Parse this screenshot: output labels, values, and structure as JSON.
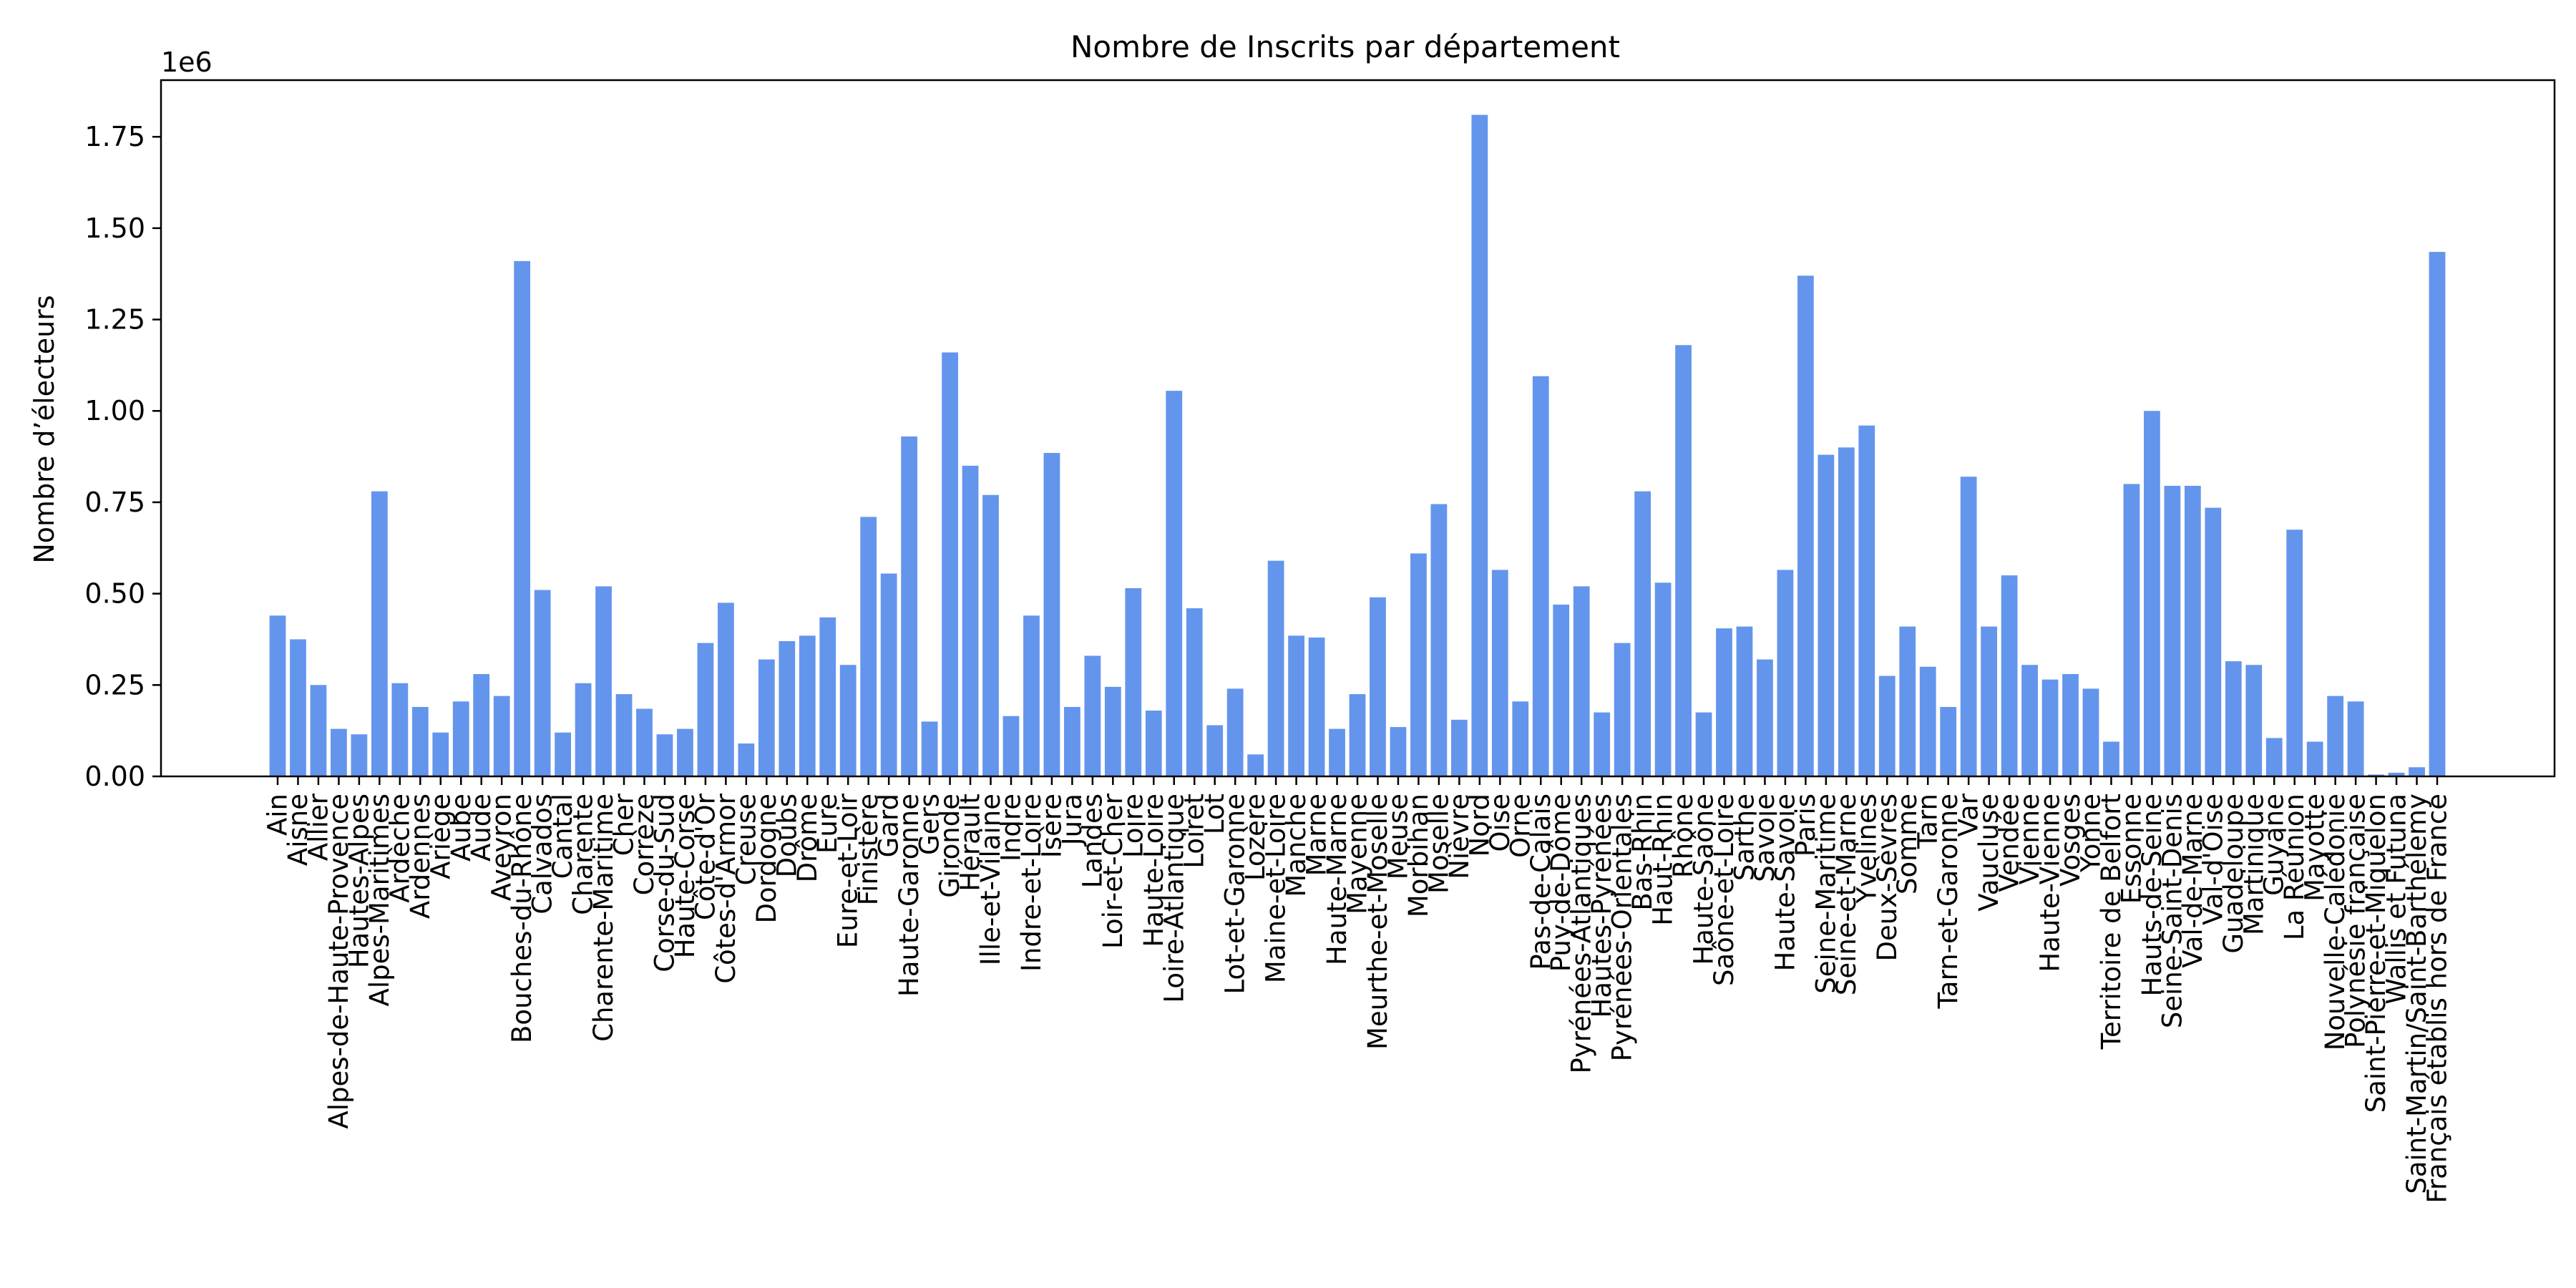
{
  "chart_data": {
    "type": "bar",
    "title": "Nombre de Inscrits par département",
    "xlabel": "",
    "ylabel": "Nombre d’électeurs",
    "offset_label": "1e6",
    "ylim": [
      0,
      1.905
    ],
    "yticks": [
      "0.00",
      "0.25",
      "0.50",
      "0.75",
      "1.00",
      "1.25",
      "1.50",
      "1.75"
    ],
    "ytick_values": [
      0,
      0.25,
      0.5,
      0.75,
      1.0,
      1.25,
      1.5,
      1.75
    ],
    "bar_color": "#6495ED",
    "grid": false,
    "categories": [
      "Ain",
      "Aisne",
      "Allier",
      "Alpes-de-Haute-Provence",
      "Hautes-Alpes",
      "Alpes-Maritimes",
      "Ardèche",
      "Ardennes",
      "Ariège",
      "Aube",
      "Aude",
      "Aveyron",
      "Bouches-du-Rhône",
      "Calvados",
      "Cantal",
      "Charente",
      "Charente-Maritime",
      "Cher",
      "Corrèze",
      "Corse-du-Sud",
      "Haute-Corse",
      "Côte-d'Or",
      "Côtes-d'Armor",
      "Creuse",
      "Dordogne",
      "Doubs",
      "Drôme",
      "Eure",
      "Eure-et-Loir",
      "Finistère",
      "Gard",
      "Haute-Garonne",
      "Gers",
      "Gironde",
      "Hérault",
      "Ille-et-Vilaine",
      "Indre",
      "Indre-et-Loire",
      "Isère",
      "Jura",
      "Landes",
      "Loir-et-Cher",
      "Loire",
      "Haute-Loire",
      "Loire-Atlantique",
      "Loiret",
      "Lot",
      "Lot-et-Garonne",
      "Lozère",
      "Maine-et-Loire",
      "Manche",
      "Marne",
      "Haute-Marne",
      "Mayenne",
      "Meurthe-et-Moselle",
      "Meuse",
      "Morbihan",
      "Moselle",
      "Nièvre",
      "Nord",
      "Oise",
      "Orne",
      "Pas-de-Calais",
      "Puy-de-Dôme",
      "Pyrénées-Atlantiques",
      "Hautes-Pyrénées",
      "Pyrénées-Orientales",
      "Bas-Rhin",
      "Haut-Rhin",
      "Rhône",
      "Haute-Saône",
      "Saône-et-Loire",
      "Sarthe",
      "Savoie",
      "Haute-Savoie",
      "Paris",
      "Seine-Maritime",
      "Seine-et-Marne",
      "Yvelines",
      "Deux-Sèvres",
      "Somme",
      "Tarn",
      "Tarn-et-Garonne",
      "Var",
      "Vaucluse",
      "Vendée",
      "Vienne",
      "Haute-Vienne",
      "Vosges",
      "Yonne",
      "Territoire de Belfort",
      "Essonne",
      "Hauts-de-Seine",
      "Seine-Saint-Denis",
      "Val-de-Marne",
      "Val-d'Oise",
      "Guadeloupe",
      "Martinique",
      "Guyane",
      "La Réunion",
      "Mayotte",
      "Nouvelle-Calédonie",
      "Polynésie française",
      "Saint-Pierre-et-Miquelon",
      "Wallis et Futuna",
      "Saint-Martin/Saint-Barthélemy",
      "Français établis hors de France"
    ],
    "values": [
      0.44,
      0.375,
      0.25,
      0.13,
      0.115,
      0.78,
      0.255,
      0.19,
      0.12,
      0.205,
      0.28,
      0.22,
      1.41,
      0.51,
      0.12,
      0.255,
      0.52,
      0.225,
      0.185,
      0.115,
      0.13,
      0.365,
      0.475,
      0.09,
      0.32,
      0.37,
      0.385,
      0.435,
      0.305,
      0.71,
      0.555,
      0.93,
      0.15,
      1.16,
      0.85,
      0.77,
      0.165,
      0.44,
      0.885,
      0.19,
      0.33,
      0.245,
      0.515,
      0.18,
      1.055,
      0.46,
      0.14,
      0.24,
      0.06,
      0.59,
      0.385,
      0.38,
      0.13,
      0.225,
      0.49,
      0.135,
      0.61,
      0.745,
      0.155,
      1.81,
      0.565,
      0.205,
      1.095,
      0.47,
      0.52,
      0.175,
      0.365,
      0.78,
      0.53,
      1.18,
      0.175,
      0.405,
      0.41,
      0.32,
      0.565,
      1.37,
      0.88,
      0.9,
      0.96,
      0.275,
      0.41,
      0.3,
      0.19,
      0.82,
      0.41,
      0.55,
      0.305,
      0.265,
      0.28,
      0.24,
      0.095,
      0.8,
      1.0,
      0.795,
      0.795,
      0.735,
      0.315,
      0.305,
      0.105,
      0.675,
      0.095,
      0.22,
      0.205,
      0.005,
      0.01,
      0.025,
      1.435
    ]
  }
}
